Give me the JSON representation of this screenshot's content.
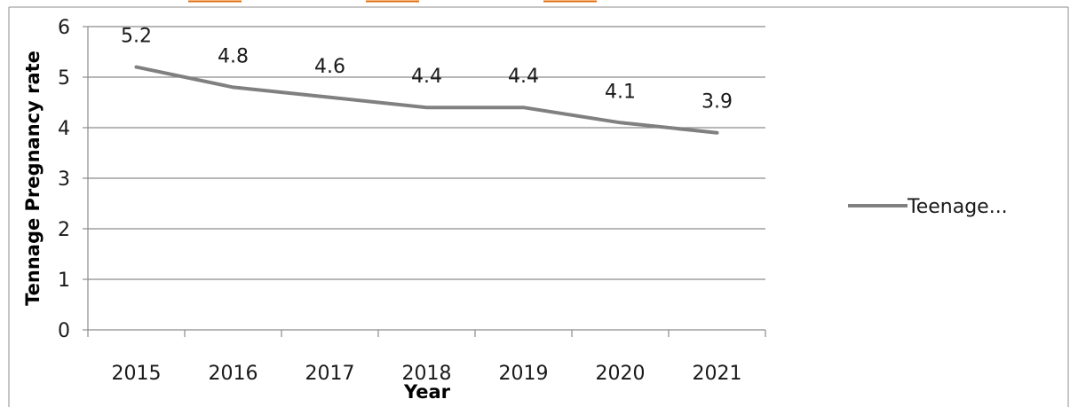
{
  "chart_data": {
    "type": "line",
    "title": "",
    "xlabel": "Year",
    "ylabel": "Tennage Pregnancy rate",
    "categories": [
      "2015",
      "2016",
      "2017",
      "2018",
      "2019",
      "2020",
      "2021"
    ],
    "ylim": [
      0,
      6
    ],
    "yticks": [
      "0",
      "1",
      "2",
      "3",
      "4",
      "5",
      "6"
    ],
    "grid": true,
    "legend_position": "right",
    "series": [
      {
        "name": "Teenage...",
        "values": [
          5.2,
          4.8,
          4.6,
          4.4,
          4.4,
          4.1,
          3.9
        ],
        "data_labels": [
          "5.2",
          "4.8",
          "4.6",
          "4.4",
          "4.4",
          "4.1",
          "3.9"
        ],
        "color": "#808080"
      }
    ],
    "colors": {
      "grid": "#8c8c8c",
      "axis": "#8c8c8c",
      "frame": "#8c8c8c",
      "accent_top": "#e36c09"
    }
  }
}
